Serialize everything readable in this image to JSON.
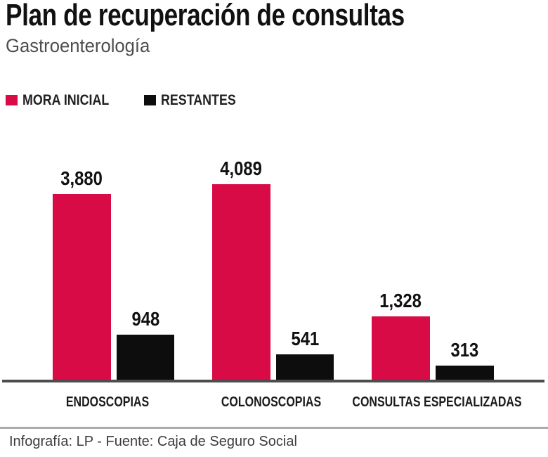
{
  "header": {
    "title": "Plan de recuperación de consultas",
    "subtitle": "Gastroenterología"
  },
  "legend": {
    "items": [
      {
        "label": "MORA INICIAL",
        "color": "#d80b46"
      },
      {
        "label": "RESTANTES",
        "color": "#0d0d0d"
      }
    ]
  },
  "chart_data": {
    "type": "bar",
    "title": "Plan de recuperación de consultas",
    "subtitle": "Gastroenterología",
    "categories": [
      "ENDOSCOPIAS",
      "COLONOSCOPIAS",
      "CONSULTAS ESPECIALIZADAS"
    ],
    "series": [
      {
        "name": "MORA INICIAL",
        "color": "#d80b46",
        "values": [
          3880,
          4089,
          1328
        ],
        "values_display": [
          "3,880",
          "4,089",
          "1,328"
        ]
      },
      {
        "name": "RESTANTES",
        "color": "#0d0d0d",
        "values": [
          948,
          541,
          313
        ],
        "values_display": [
          "948",
          "541",
          "313"
        ]
      }
    ],
    "ylim": [
      0,
      4089
    ],
    "grid": false,
    "legend_position": "top-left",
    "value_labels_shown": true
  },
  "footer": {
    "credit": "Infografía: LP - Fuente: Caja de Seguro Social"
  }
}
